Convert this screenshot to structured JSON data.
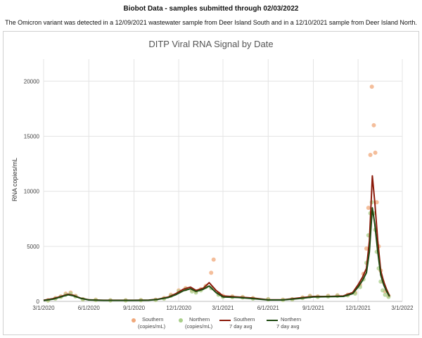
{
  "header": {
    "title": "Biobot Data - samples submitted through 02/03/2022",
    "subtitle": "The Omicron variant was detected in a 12/09/2021 wastewater sample from Deer Island South and in a 12/10/2021 sample from Deer Island North."
  },
  "colors": {
    "southern_points": "#f0a87a",
    "northern_points": "#a9cf8a",
    "southern_avg": "#8b1a0a",
    "northern_avg": "#1f4a12",
    "grid": "#e4e4e4"
  },
  "chart_data": {
    "type": "scatter",
    "title": "DITP Viral RNA Signal by Date",
    "xlabel": "",
    "ylabel": "RNA copies/mL",
    "ylim": [
      0,
      22000
    ],
    "xlim": [
      "3/1/2020",
      "3/1/2022"
    ],
    "grid": true,
    "legend_position": "bottom",
    "yticks": [
      "0",
      "5000",
      "10000",
      "15000",
      "20000"
    ],
    "xticks": [
      "3/1/2020",
      "6/1/2020",
      "9/1/2020",
      "12/1/2020",
      "3/1/2021",
      "6/1/2021",
      "9/1/2021",
      "12/1/2021",
      "3/1/2022"
    ],
    "series": [
      {
        "name": "Southern (copies/mL)",
        "name_line1": "Southern",
        "name_line2": "(copies/mL)",
        "kind": "points",
        "x": [
          "2020-03-10",
          "2020-03-25",
          "2020-04-05",
          "2020-04-15",
          "2020-04-25",
          "2020-05-05",
          "2020-05-20",
          "2020-06-15",
          "2020-07-15",
          "2020-08-15",
          "2020-09-15",
          "2020-10-15",
          "2020-11-01",
          "2020-11-15",
          "2020-12-01",
          "2020-12-15",
          "2020-12-28",
          "2021-01-05",
          "2021-01-15",
          "2021-01-25",
          "2021-02-05",
          "2021-02-10",
          "2021-02-20",
          "2021-03-01",
          "2021-03-20",
          "2021-04-10",
          "2021-05-01",
          "2021-06-01",
          "2021-07-01",
          "2021-07-20",
          "2021-08-10",
          "2021-08-25",
          "2021-09-10",
          "2021-10-01",
          "2021-10-20",
          "2021-11-10",
          "2021-11-25",
          "2021-12-05",
          "2021-12-12",
          "2021-12-18",
          "2021-12-22",
          "2021-12-26",
          "2021-12-29",
          "2022-01-02",
          "2022-01-05",
          "2022-01-08",
          "2022-01-12",
          "2022-01-16",
          "2022-01-20",
          "2022-01-25",
          "2022-02-01"
        ],
        "y": [
          100,
          300,
          450,
          700,
          800,
          500,
          200,
          150,
          100,
          100,
          120,
          150,
          300,
          600,
          1000,
          1200,
          1000,
          900,
          1100,
          1400,
          2600,
          3800,
          700,
          500,
          450,
          400,
          300,
          200,
          150,
          200,
          350,
          500,
          450,
          500,
          550,
          600,
          800,
          1500,
          2500,
          4800,
          8500,
          13300,
          19500,
          16000,
          13500,
          9000,
          5000,
          2800,
          1800,
          900,
          500
        ]
      },
      {
        "name": "Northern (copies/mL)",
        "name_line1": "Northern",
        "name_line2": "(copies/mL)",
        "kind": "points",
        "x": [
          "2020-03-10",
          "2020-03-25",
          "2020-04-05",
          "2020-04-15",
          "2020-04-25",
          "2020-05-05",
          "2020-05-20",
          "2020-06-15",
          "2020-07-15",
          "2020-08-15",
          "2020-09-15",
          "2020-10-15",
          "2020-11-01",
          "2020-11-15",
          "2020-12-01",
          "2020-12-15",
          "2020-12-28",
          "2021-01-05",
          "2021-01-15",
          "2021-01-25",
          "2021-02-05",
          "2021-02-20",
          "2021-03-01",
          "2021-03-20",
          "2021-04-10",
          "2021-05-01",
          "2021-06-01",
          "2021-07-01",
          "2021-07-20",
          "2021-08-10",
          "2021-08-25",
          "2021-09-10",
          "2021-10-01",
          "2021-10-20",
          "2021-11-10",
          "2021-11-25",
          "2021-12-05",
          "2021-12-12",
          "2021-12-18",
          "2021-12-22",
          "2021-12-26",
          "2021-12-29",
          "2022-01-02",
          "2022-01-05",
          "2022-01-08",
          "2022-01-12",
          "2022-01-16",
          "2022-01-20",
          "2022-01-25",
          "2022-02-01"
        ],
        "y": [
          80,
          250,
          400,
          600,
          700,
          450,
          180,
          120,
          90,
          90,
          100,
          130,
          250,
          500,
          900,
          1100,
          900,
          800,
          1000,
          1300,
          1200,
          600,
          400,
          380,
          350,
          250,
          180,
          130,
          180,
          300,
          450,
          400,
          450,
          500,
          550,
          700,
          1300,
          2000,
          3500,
          6000,
          8000,
          9000,
          8000,
          6500,
          4500,
          3000,
          1800,
          1000,
          600,
          400
        ]
      },
      {
        "name": "Southern 7 day avg",
        "name_line1": "Southern",
        "name_line2": "7 day avg",
        "kind": "line",
        "x": [
          "2020-03-01",
          "2020-03-20",
          "2020-04-05",
          "2020-04-20",
          "2020-05-01",
          "2020-05-15",
          "2020-06-01",
          "2020-07-01",
          "2020-08-01",
          "2020-09-01",
          "2020-10-01",
          "2020-10-20",
          "2020-11-10",
          "2020-11-25",
          "2020-12-10",
          "2020-12-25",
          "2021-01-05",
          "2021-01-20",
          "2021-02-01",
          "2021-02-15",
          "2021-03-01",
          "2021-04-01",
          "2021-05-01",
          "2021-06-01",
          "2021-07-01",
          "2021-08-01",
          "2021-09-01",
          "2021-10-01",
          "2021-11-01",
          "2021-11-20",
          "2021-12-01",
          "2021-12-10",
          "2021-12-18",
          "2021-12-24",
          "2021-12-30",
          "2022-01-04",
          "2022-01-10",
          "2022-01-16",
          "2022-01-22",
          "2022-01-28",
          "2022-02-03"
        ],
        "y": [
          100,
          250,
          450,
          650,
          550,
          300,
          150,
          100,
          100,
          100,
          120,
          200,
          400,
          700,
          1100,
          1300,
          1000,
          1200,
          1700,
          1000,
          500,
          400,
          300,
          150,
          150,
          300,
          450,
          450,
          500,
          800,
          1500,
          2200,
          3000,
          5500,
          11400,
          9000,
          5500,
          2800,
          1800,
          1100,
          500
        ]
      },
      {
        "name": "Northern 7 day avg",
        "name_line1": "Northern",
        "name_line2": "7 day avg",
        "kind": "line",
        "x": [
          "2020-03-01",
          "2020-03-20",
          "2020-04-05",
          "2020-04-20",
          "2020-05-01",
          "2020-05-15",
          "2020-06-01",
          "2020-07-01",
          "2020-08-01",
          "2020-09-01",
          "2020-10-01",
          "2020-10-20",
          "2020-11-10",
          "2020-11-25",
          "2020-12-10",
          "2020-12-25",
          "2021-01-05",
          "2021-01-20",
          "2021-02-01",
          "2021-02-15",
          "2021-03-01",
          "2021-04-01",
          "2021-05-01",
          "2021-06-01",
          "2021-07-01",
          "2021-08-01",
          "2021-09-01",
          "2021-10-01",
          "2021-11-01",
          "2021-11-20",
          "2021-12-01",
          "2021-12-10",
          "2021-12-18",
          "2021-12-24",
          "2021-12-30",
          "2022-01-04",
          "2022-01-10",
          "2022-01-16",
          "2022-01-22",
          "2022-01-28",
          "2022-02-03"
        ],
        "y": [
          80,
          200,
          400,
          600,
          500,
          280,
          130,
          90,
          90,
          90,
          100,
          180,
          350,
          600,
          950,
          1150,
          900,
          1100,
          1400,
          800,
          400,
          350,
          250,
          130,
          130,
          250,
          400,
          420,
          450,
          700,
          1300,
          1900,
          2600,
          4500,
          8500,
          7000,
          4500,
          2400,
          1500,
          900,
          450
        ]
      }
    ]
  }
}
